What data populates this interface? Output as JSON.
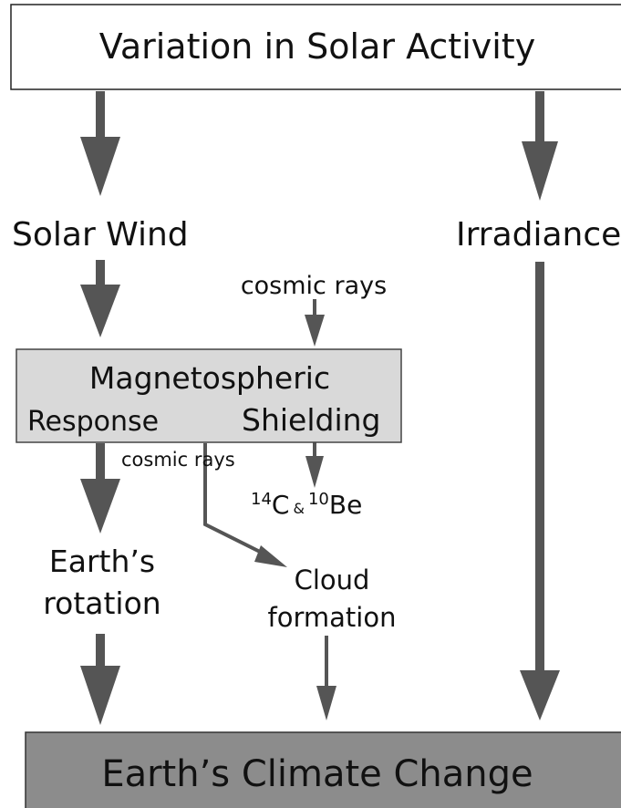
{
  "nodes": {
    "top": "Variation in Solar Activity",
    "solar_wind": "Solar Wind",
    "irradiance": "Irradiance",
    "cosmic_rays_top": "cosmic rays",
    "magneto": [
      "Magnetospheric",
      "Response",
      "Shielding"
    ],
    "cosmic_rays_low": "cosmic rays",
    "isotopes": [
      "14",
      "C",
      "&",
      "10",
      "Be"
    ],
    "rotation": [
      "Earth’s",
      "rotation"
    ],
    "cloud": [
      "Cloud",
      "formation"
    ],
    "bottom": "Earth’s Climate Change"
  }
}
